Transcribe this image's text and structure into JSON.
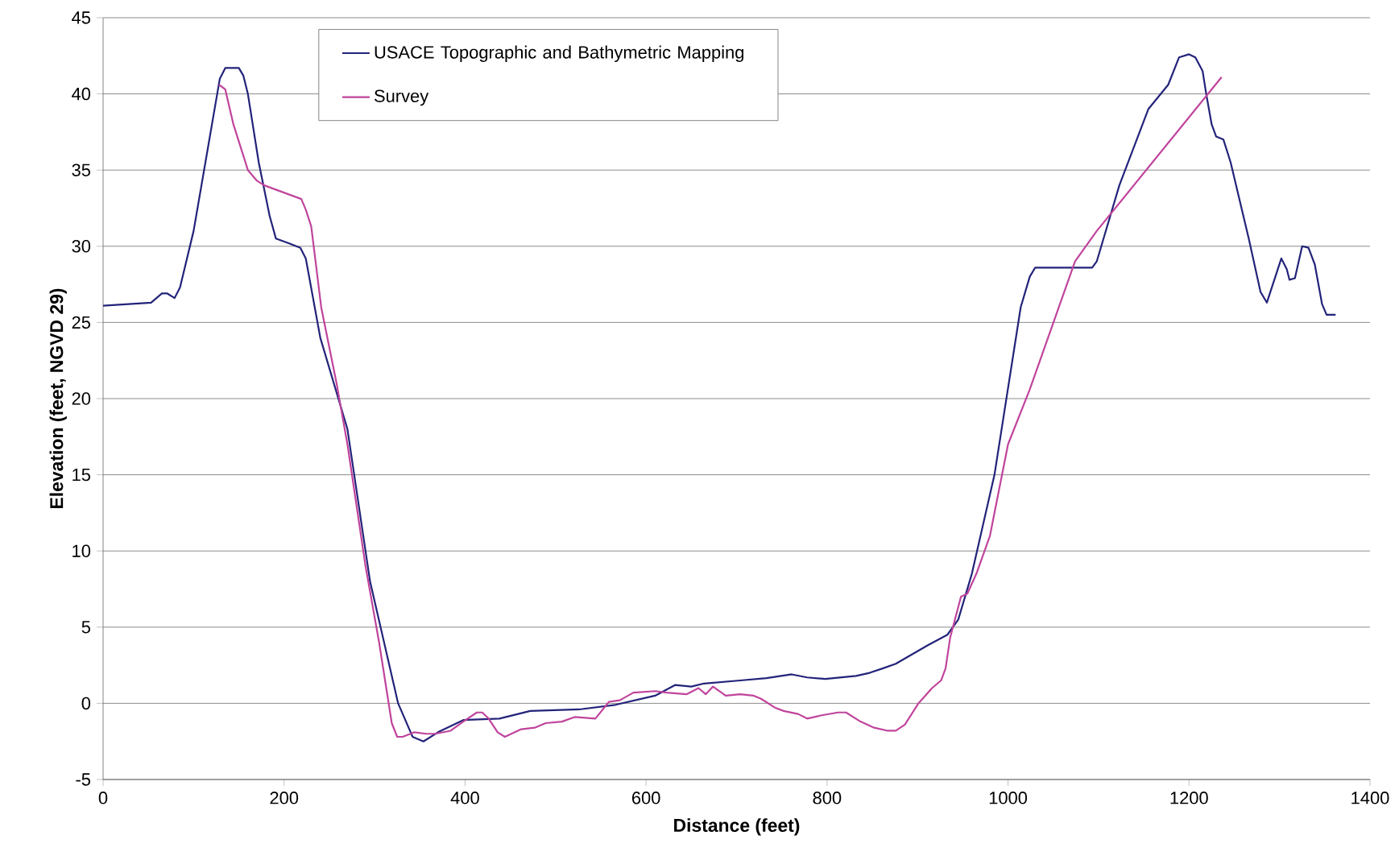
{
  "chart_data": {
    "type": "line",
    "xlabel": "Distance (feet)",
    "ylabel": "Elevation (feet, NGVD 29)",
    "xlim": [
      0,
      1400
    ],
    "xticks": [
      0,
      200,
      400,
      600,
      800,
      1000,
      1200,
      1400
    ],
    "ylim": [
      -5,
      45
    ],
    "yticks": [
      -5,
      0,
      5,
      10,
      15,
      20,
      25,
      30,
      35,
      40,
      45
    ],
    "grid": "y",
    "legend": "top",
    "marker": "none",
    "line_style": "solid",
    "series": [
      {
        "name": "USACE Topographic and Bathymetric Mapping",
        "color": "#23237a",
        "x": [
          0,
          53,
          65,
          71,
          79,
          85,
          100,
          129,
          135,
          150,
          155,
          160,
          172,
          184,
          191,
          205,
          218,
          224,
          240,
          270,
          295,
          326,
          342,
          354,
          370,
          398,
          438,
          472,
          526,
          566,
          610,
          632,
          650,
          664,
          704,
          733,
          761,
          778,
          798,
          832,
          847,
          862,
          876,
          911,
          933,
          945,
          960,
          985,
          1014,
          1024,
          1030,
          1093,
          1098,
          1123,
          1155,
          1177,
          1189,
          1200,
          1207,
          1215,
          1219,
          1225,
          1230,
          1238,
          1246,
          1266,
          1279,
          1286,
          1302,
          1308,
          1311,
          1317,
          1325,
          1332,
          1339,
          1347,
          1352,
          1362
        ],
        "values": [
          26.1,
          26.3,
          26.9,
          26.9,
          26.6,
          27.3,
          31,
          41,
          41.7,
          41.7,
          41.2,
          40,
          35.5,
          32,
          30.5,
          30.2,
          29.9,
          29.2,
          24,
          18,
          8,
          0,
          -2.2,
          -2.5,
          -1.9,
          -1.1,
          -1,
          -0.5,
          -0.4,
          -0.1,
          0.5,
          1.2,
          1.1,
          1.3,
          1.5,
          1.65,
          1.9,
          1.7,
          1.6,
          1.8,
          2,
          2.3,
          2.6,
          3.8,
          4.5,
          5.5,
          8.5,
          15,
          26,
          28,
          28.6,
          28.6,
          29,
          34,
          39,
          40.6,
          42.4,
          42.6,
          42.4,
          41.5,
          40,
          38,
          37.2,
          37,
          35.5,
          30.5,
          27,
          26.3,
          29.2,
          28.5,
          27.8,
          27.9,
          30,
          29.9,
          28.8,
          26.2,
          25.5,
          25.5
        ]
      },
      {
        "name": "Survey",
        "color": "#c0449c",
        "x": [
          128,
          135,
          144,
          160,
          170,
          178,
          219,
          224,
          230,
          241,
          258,
          270,
          290,
          305,
          319,
          325,
          331,
          344,
          357,
          367,
          384,
          398,
          413,
          419,
          426,
          436,
          444,
          462,
          477,
          489,
          507,
          521,
          544,
          559,
          571,
          586,
          610,
          623,
          645,
          658,
          666,
          674,
          688,
          704,
          719,
          727,
          743,
          752,
          768,
          778,
          793,
          812,
          821,
          837,
          852,
          867,
          876,
          886,
          901,
          916,
          926,
          931,
          936,
          948,
          955,
          965,
          980,
          1000,
          1024,
          1074,
          1098,
          1236
        ],
        "values": [
          40.6,
          40.3,
          38,
          35,
          34.3,
          34,
          33.1,
          32.4,
          31.3,
          26,
          21,
          17,
          9,
          4,
          -1.3,
          -2.2,
          -2.2,
          -1.9,
          -2,
          -2,
          -1.8,
          -1.2,
          -0.6,
          -0.6,
          -1,
          -1.9,
          -2.2,
          -1.7,
          -1.6,
          -1.3,
          -1.2,
          -0.9,
          -1,
          0.1,
          0.2,
          0.7,
          0.8,
          0.7,
          0.6,
          1,
          0.6,
          1.1,
          0.5,
          0.6,
          0.5,
          0.3,
          -0.3,
          -0.5,
          -0.7,
          -1,
          -0.8,
          -0.6,
          -0.6,
          -1.2,
          -1.6,
          -1.8,
          -1.8,
          -1.4,
          0,
          1,
          1.5,
          2.3,
          4.3,
          7,
          7.2,
          8.5,
          11,
          17,
          20.6,
          29,
          31,
          41.1
        ]
      }
    ]
  }
}
